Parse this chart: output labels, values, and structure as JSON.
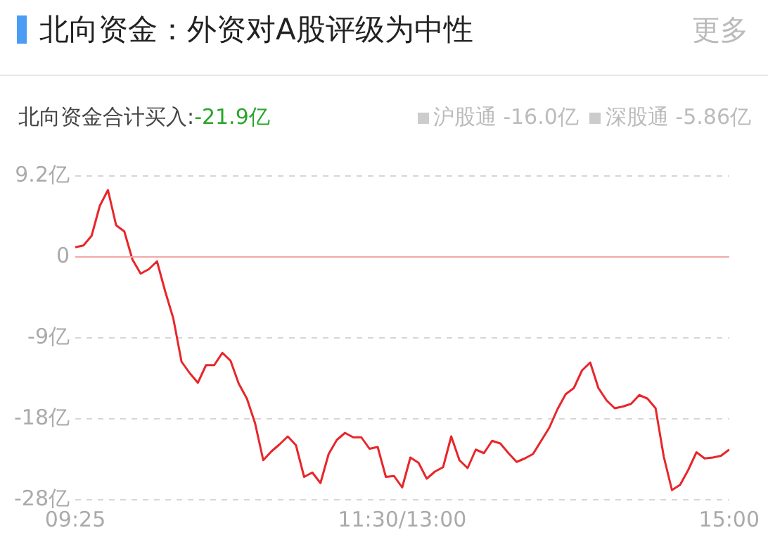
{
  "chart_data": {
    "type": "line",
    "title": "北向资金：外资对A股评级为中性",
    "subtitle": "北向资金合计买入:",
    "annotations": [
      "-21.9亿",
      "沪股通 -16.0亿",
      "深股通 -5.86亿",
      "更多"
    ],
    "categories": [
      "09:25",
      null,
      null,
      null,
      null,
      null,
      null,
      null,
      null,
      null,
      null,
      null,
      null,
      null,
      null,
      null,
      null,
      null,
      null,
      null,
      null,
      null,
      null,
      null,
      null,
      null,
      null,
      null,
      null,
      null,
      null,
      null,
      null,
      null,
      null,
      null,
      null,
      null,
      null,
      null,
      "11:30/13:00",
      null,
      null,
      null,
      null,
      null,
      null,
      null,
      null,
      null,
      null,
      null,
      null,
      null,
      null,
      null,
      null,
      null,
      null,
      null,
      null,
      null,
      null,
      null,
      null,
      null,
      null,
      null,
      null,
      null,
      null,
      null,
      null,
      null,
      null,
      null,
      null,
      null,
      null,
      null,
      "15:00"
    ],
    "series": [
      {
        "color": "#e8262a",
        "values": [
          1.1,
          1.3,
          2.4,
          5.8,
          7.6,
          3.6,
          2.9,
          -0.3,
          -1.9,
          -1.4,
          -0.5,
          -3.9,
          -7.0,
          -11.9,
          -13.2,
          -14.3,
          -12.3,
          -12.3,
          -10.9,
          -11.8,
          -14.4,
          -16.1,
          -18.9,
          -23.1,
          -22.1,
          -21.3,
          -20.4,
          -21.4,
          -25.0,
          -24.5,
          -25.7,
          -22.4,
          -20.8,
          -20.0,
          -20.5,
          -20.5,
          -21.8,
          -21.6,
          -25.0,
          -24.9,
          -26.2,
          -22.8,
          -23.4,
          -25.2,
          -24.4,
          -23.9,
          -20.4,
          -23.1,
          -24.0,
          -21.9,
          -22.3,
          -20.9,
          -21.2,
          -22.3,
          -23.3,
          -22.9,
          -22.4,
          -20.9,
          -19.4,
          -17.3,
          -15.6,
          -14.9,
          -12.9,
          -12.0,
          -14.9,
          -16.3,
          -17.2,
          -17.0,
          -16.7,
          -15.7,
          -16.1,
          -17.2,
          -22.7,
          -26.5,
          -25.9,
          -24.2,
          -22.2,
          -22.9,
          -22.8,
          -22.6,
          -21.9
        ]
      }
    ],
    "ylim": [
      -27.6,
      9.2
    ],
    "yticks": [
      {
        "value": 9.2,
        "label": "9.2亿"
      },
      0,
      {
        "value": -9.2,
        "label": "-9亿"
      },
      {
        "value": -18.4,
        "label": "-18亿"
      },
      {
        "value": -27.6,
        "label": "-28亿"
      }
    ],
    "grid": "y",
    "legend": false,
    "line_style": "solid",
    "ref_lines": [
      {
        "axis": "y",
        "value": 0,
        "color": "#f2a7a7"
      }
    ]
  }
}
